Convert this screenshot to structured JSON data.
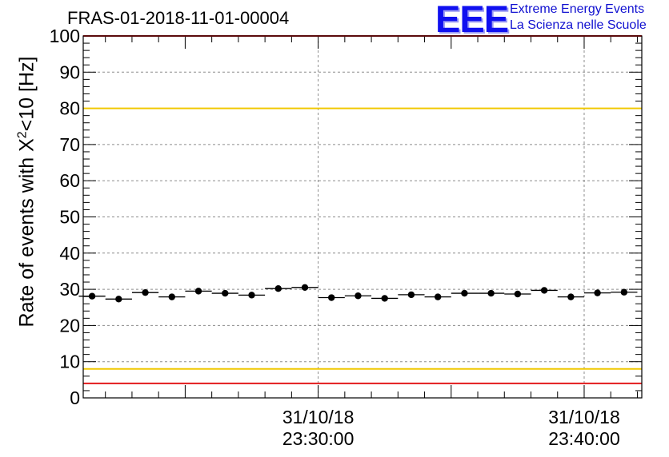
{
  "header": {
    "title": "FRAS-01-2018-11-01-00004",
    "logo": "EEE",
    "logo_line1": "Extreme Energy Events",
    "logo_line2": "La Scienza nelle Scuole"
  },
  "chart_data": {
    "type": "scatter",
    "title": "FRAS-01-2018-11-01-00004",
    "ylabel_main": "Rate of events with X",
    "ylabel_sup": "2",
    "ylabel_tail": "<10 [Hz]",
    "xlabel": "",
    "ylim": [
      0,
      100
    ],
    "xlim": [
      "31/10/18 23:21:10",
      "31/10/18 23:42:10"
    ],
    "yticks": [
      0,
      10,
      20,
      30,
      40,
      50,
      60,
      70,
      80,
      90,
      100
    ],
    "xticks": [
      {
        "date": "31/10/18",
        "time": "23:30:00"
      },
      {
        "date": "31/10/18",
        "time": "23:40:00"
      }
    ],
    "grid": true,
    "points": [
      {
        "x": "23:21:30",
        "y": 28.1
      },
      {
        "x": "23:22:30",
        "y": 27.3
      },
      {
        "x": "23:23:30",
        "y": 29.1
      },
      {
        "x": "23:24:30",
        "y": 27.9
      },
      {
        "x": "23:25:30",
        "y": 29.5
      },
      {
        "x": "23:26:30",
        "y": 28.9
      },
      {
        "x": "23:27:30",
        "y": 28.4
      },
      {
        "x": "23:28:30",
        "y": 30.2
      },
      {
        "x": "23:29:30",
        "y": 30.5
      },
      {
        "x": "23:30:30",
        "y": 27.7
      },
      {
        "x": "23:31:30",
        "y": 28.2
      },
      {
        "x": "23:32:30",
        "y": 27.5
      },
      {
        "x": "23:33:30",
        "y": 28.5
      },
      {
        "x": "23:34:30",
        "y": 27.9
      },
      {
        "x": "23:35:30",
        "y": 28.9
      },
      {
        "x": "23:36:30",
        "y": 28.9
      },
      {
        "x": "23:37:30",
        "y": 28.7
      },
      {
        "x": "23:38:30",
        "y": 29.7
      },
      {
        "x": "23:39:30",
        "y": 27.9
      },
      {
        "x": "23:40:30",
        "y": 29.0
      },
      {
        "x": "23:41:30",
        "y": 29.2
      }
    ],
    "bin_width_seconds": 60,
    "reference_lines": [
      {
        "y": 100,
        "color": "#e31a1c"
      },
      {
        "y": 80,
        "color": "#f0c800"
      },
      {
        "y": 8,
        "color": "#f0c800"
      },
      {
        "y": 4,
        "color": "#e31a1c"
      }
    ],
    "marker_color": "#000000"
  }
}
